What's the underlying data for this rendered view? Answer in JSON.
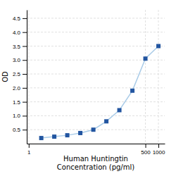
{
  "chart_data": {
    "type": "line",
    "x": [
      1.95,
      3.9,
      7.8,
      15.6,
      31.25,
      62.5,
      125,
      250,
      500,
      1000
    ],
    "values": [
      0.2,
      0.25,
      0.3,
      0.38,
      0.5,
      0.8,
      1.2,
      1.9,
      3.05,
      3.5
    ],
    "color": "#aacce8",
    "colors": [
      "#2255a0",
      "#2255a0",
      "#2255a0",
      "#2255a0",
      "#2255a0",
      "#2255a0",
      "#2255a0",
      "#2255a0",
      "#2255a0",
      "#2255a0"
    ],
    "marker": "square",
    "line_style": "solid",
    "xlabel": [
      "Human Huntingtin",
      "Concentration (pg/ml)"
    ],
    "ylabel": "OD",
    "log": "x",
    "xlim": [
      0.9,
      1400
    ],
    "xticks": [
      1,
      500,
      1000
    ],
    "ylim": [
      0.0,
      4.8
    ],
    "yticks": [
      0.5,
      {
        "value": 1.0,
        "label": "1.0"
      },
      1.5,
      {
        "value": 2.0,
        "label": "2.0"
      },
      2.5,
      {
        "value": 3.0,
        "label": "3.0"
      },
      3.5,
      {
        "value": 4.0,
        "label": "4.0"
      },
      4.5
    ],
    "grid": true
  }
}
